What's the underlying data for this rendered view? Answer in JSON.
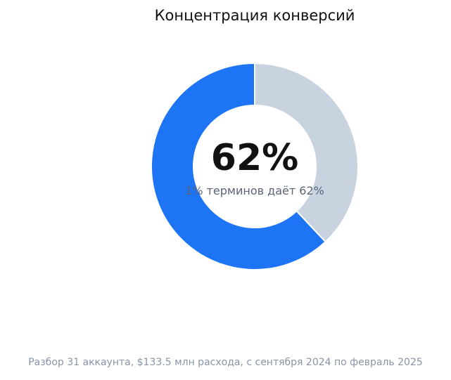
{
  "chart_data": {
    "type": "pie",
    "title": "Концентрация конверсий",
    "center_value": "62%",
    "center_caption": "1% терминов даёт 62%",
    "slices": [
      {
        "value": 62,
        "color": "#1d74f5"
      },
      {
        "value": 38,
        "color": "#c9d3df"
      }
    ]
  },
  "footer": "Разбор 31 аккаунта, $133.5 млн расхода, с сентября 2024 по февраль 2025"
}
